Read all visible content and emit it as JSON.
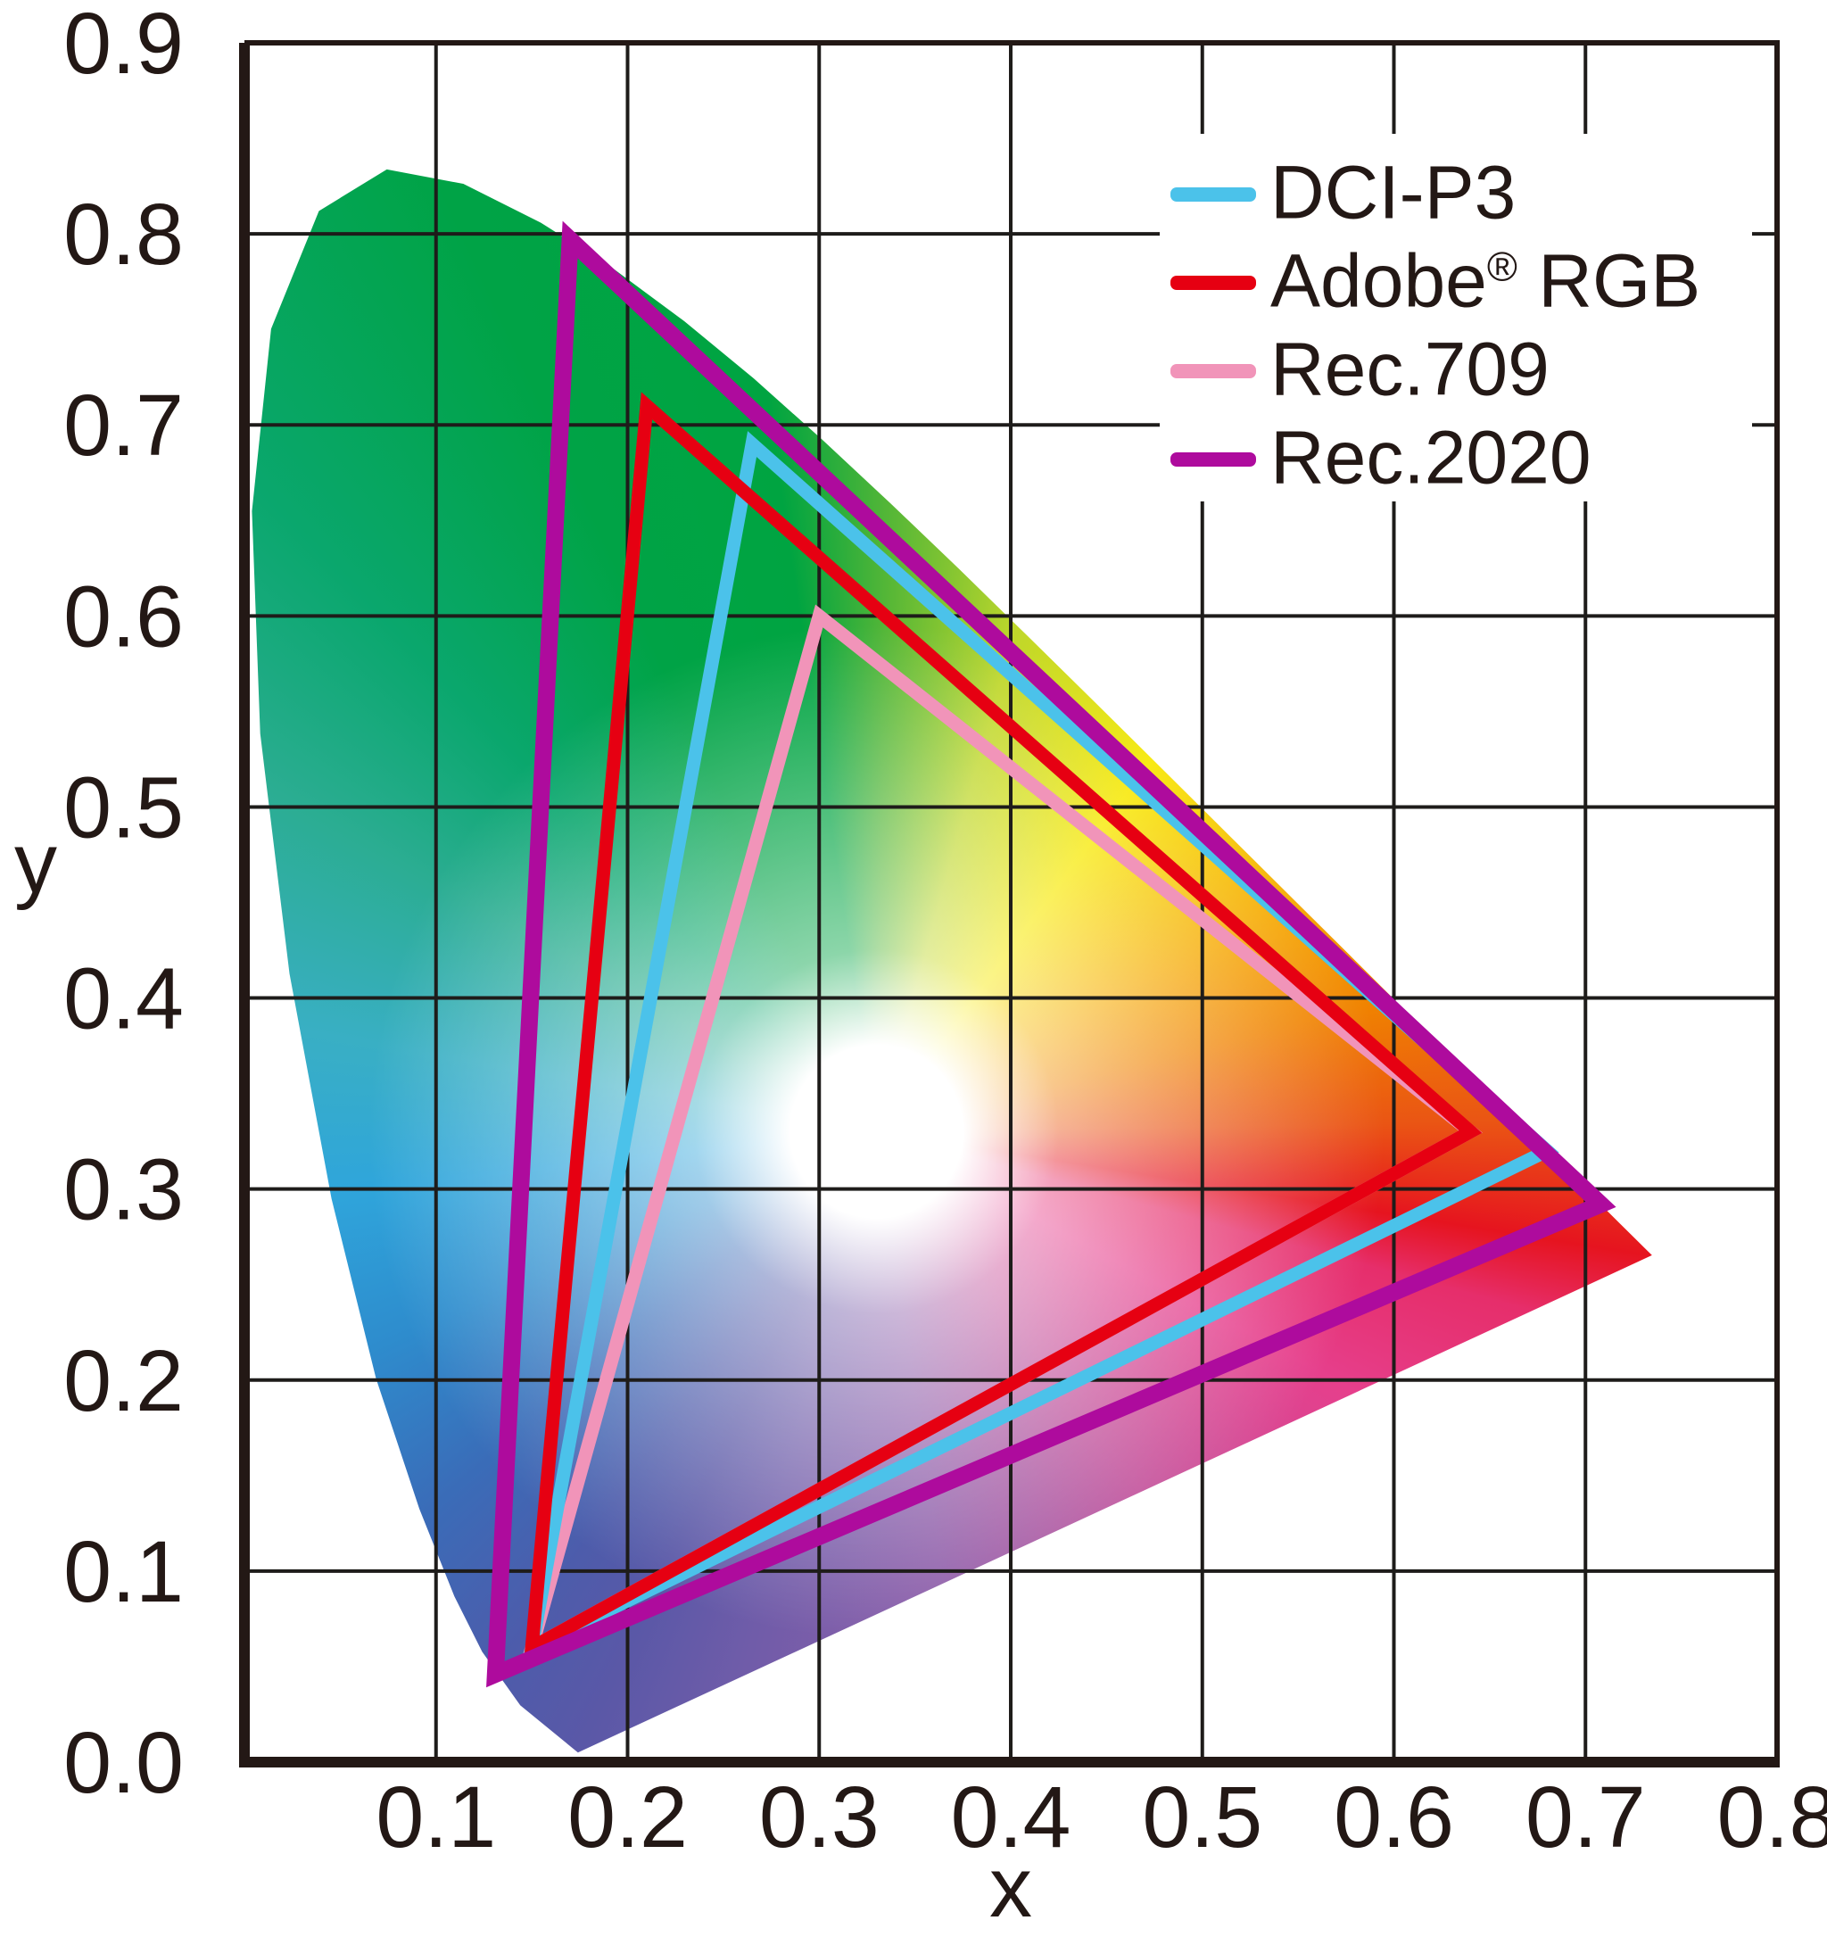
{
  "style": {
    "background": "#ffffff",
    "text_color": "#231815",
    "grid_color": "#1E1C1A",
    "border_color": "#231815",
    "legend_background": "#ffffff"
  },
  "chart_data": {
    "type": "line",
    "xlabel": "x",
    "ylabel": "y",
    "xlim": [
      0,
      0.8
    ],
    "ylim": [
      0,
      0.9
    ],
    "x_ticks": [
      0.1,
      0.2,
      0.3,
      0.4,
      0.5,
      0.6,
      0.7,
      0.8
    ],
    "y_ticks": [
      0.0,
      0.1,
      0.2,
      0.3,
      0.4,
      0.5,
      0.6,
      0.7,
      0.8,
      0.9
    ],
    "grid": true,
    "legend_position": "top-right",
    "series": [
      {
        "name": "DCI-P3",
        "color": "#4BC2EA",
        "stroke_width": 15,
        "closed": true,
        "points": [
          [
            0.68,
            0.32
          ],
          [
            0.265,
            0.69
          ],
          [
            0.15,
            0.06
          ]
        ]
      },
      {
        "name": "Adobe® RGB",
        "color": "#E60012",
        "stroke_width": 15,
        "closed": true,
        "points": [
          [
            0.64,
            0.33
          ],
          [
            0.21,
            0.71
          ],
          [
            0.15,
            0.06
          ]
        ]
      },
      {
        "name": "Rec.709",
        "color": "#F194B9",
        "stroke_width": 15,
        "closed": true,
        "points": [
          [
            0.64,
            0.33
          ],
          [
            0.3,
            0.6
          ],
          [
            0.15,
            0.06
          ]
        ]
      },
      {
        "name": "Rec.2020",
        "color": "#AE0B9D",
        "stroke_width": 19,
        "closed": true,
        "points": [
          [
            0.708,
            0.292
          ],
          [
            0.17,
            0.797
          ],
          [
            0.131,
            0.046
          ]
        ]
      }
    ],
    "draw_order": [
      "Rec.709",
      "DCI-P3",
      "Adobe® RGB",
      "Rec.2020"
    ],
    "spectral_locus": {
      "points": [
        [
          0.1741,
          0.005
        ],
        [
          0.144,
          0.0297
        ],
        [
          0.1241,
          0.0578
        ],
        [
          0.1096,
          0.0868
        ],
        [
          0.0913,
          0.1327
        ],
        [
          0.0687,
          0.2007
        ],
        [
          0.0454,
          0.295
        ],
        [
          0.0235,
          0.4127
        ],
        [
          0.0082,
          0.5384
        ],
        [
          0.0039,
          0.6548
        ],
        [
          0.0139,
          0.7502
        ],
        [
          0.0389,
          0.812
        ],
        [
          0.0743,
          0.8338
        ],
        [
          0.1142,
          0.8262
        ],
        [
          0.1547,
          0.8059
        ],
        [
          0.1929,
          0.7816
        ],
        [
          0.2296,
          0.7543
        ],
        [
          0.2658,
          0.7243
        ],
        [
          0.3016,
          0.6923
        ],
        [
          0.3373,
          0.6589
        ],
        [
          0.3731,
          0.6245
        ],
        [
          0.4087,
          0.5896
        ],
        [
          0.4441,
          0.5547
        ],
        [
          0.4788,
          0.5202
        ],
        [
          0.5125,
          0.4866
        ],
        [
          0.5448,
          0.4544
        ],
        [
          0.5752,
          0.4242
        ],
        [
          0.6029,
          0.3965
        ],
        [
          0.627,
          0.3725
        ],
        [
          0.6482,
          0.3514
        ],
        [
          0.6658,
          0.334
        ],
        [
          0.6801,
          0.3197
        ],
        [
          0.6915,
          0.3083
        ],
        [
          0.7006,
          0.2993
        ],
        [
          0.7079,
          0.292
        ],
        [
          0.719,
          0.2809
        ],
        [
          0.726,
          0.274
        ],
        [
          0.7347,
          0.2653
        ]
      ]
    },
    "gradient": {
      "white_point": {
        "x": 0.33,
        "y": 0.33
      },
      "hue_anchors": [
        {
          "x": 0.26,
          "y": 0.8,
          "color": "#00A441"
        },
        {
          "x": 0.1,
          "y": 0.835,
          "color": "#00A346"
        },
        {
          "x": 0.015,
          "y": 0.66,
          "color": "#0AA76D"
        },
        {
          "x": 0.03,
          "y": 0.5,
          "color": "#2BAD92"
        },
        {
          "x": 0.045,
          "y": 0.38,
          "color": "#39AFC4"
        },
        {
          "x": 0.06,
          "y": 0.3,
          "color": "#2FA5DB"
        },
        {
          "x": 0.075,
          "y": 0.22,
          "color": "#2E8CCD"
        },
        {
          "x": 0.1,
          "y": 0.135,
          "color": "#3A6CB8"
        },
        {
          "x": 0.131,
          "y": 0.046,
          "color": "#4D5CAB"
        },
        {
          "x": 0.174,
          "y": 0.005,
          "color": "#5A58A7"
        },
        {
          "x": 0.26,
          "y": 0.055,
          "color": "#6F5CA9"
        },
        {
          "x": 0.36,
          "y": 0.115,
          "color": "#8F5FAA"
        },
        {
          "x": 0.45,
          "y": 0.165,
          "color": "#C2519B"
        },
        {
          "x": 0.55,
          "y": 0.21,
          "color": "#E63F8C"
        },
        {
          "x": 0.64,
          "y": 0.245,
          "color": "#E62E6B"
        },
        {
          "x": 0.735,
          "y": 0.265,
          "color": "#E6141F"
        },
        {
          "x": 0.66,
          "y": 0.335,
          "color": "#EA5514"
        },
        {
          "x": 0.6,
          "y": 0.4,
          "color": "#F08300"
        },
        {
          "x": 0.54,
          "y": 0.45,
          "color": "#F6AB00"
        },
        {
          "x": 0.47,
          "y": 0.52,
          "color": "#F7E800"
        },
        {
          "x": 0.4,
          "y": 0.585,
          "color": "#BFD72B"
        },
        {
          "x": 0.335,
          "y": 0.645,
          "color": "#53B637"
        }
      ],
      "white_glow": {
        "stops": [
          {
            "d": 0.0,
            "a": 1
          },
          {
            "d": 0.045,
            "a": 1
          },
          {
            "d": 0.095,
            "a": 0.55
          },
          {
            "d": 0.265,
            "a": 0
          }
        ]
      }
    }
  },
  "legend": {
    "items": [
      {
        "label": "DCI-P3",
        "color": "#4BC2EA"
      },
      {
        "label": "Adobe® RGB",
        "color": "#E60012"
      },
      {
        "label": "Rec.709",
        "color": "#F194B9"
      },
      {
        "label": "Rec.2020",
        "color": "#AE0B9D"
      }
    ]
  }
}
